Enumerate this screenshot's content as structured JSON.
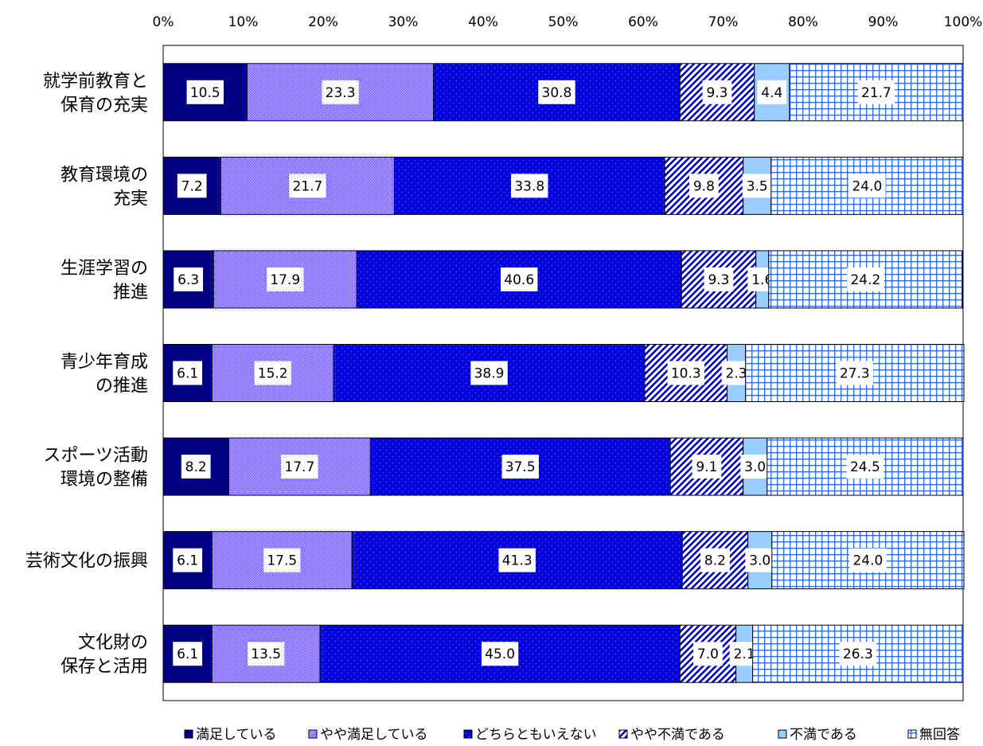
{
  "chart_data": {
    "type": "bar",
    "orientation": "horizontal",
    "stacked": true,
    "percent": true,
    "xlim": [
      0,
      100
    ],
    "x_ticks": [
      "0%",
      "10%",
      "20%",
      "30%",
      "40%",
      "50%",
      "60%",
      "70%",
      "80%",
      "90%",
      "100%"
    ],
    "categories": [
      [
        "就学前教育と",
        "保育の充実"
      ],
      [
        "教育環境の",
        "充実"
      ],
      [
        "生涯学習の",
        "推進"
      ],
      [
        "青少年育成",
        "の推進"
      ],
      [
        "スポーツ活動",
        "環境の整備"
      ],
      [
        "芸術文化の振興"
      ],
      [
        "文化財の",
        "保存と活用"
      ]
    ],
    "series": [
      {
        "name": "満足している",
        "color": "#000080",
        "pattern": "solid",
        "values": [
          10.5,
          7.2,
          6.3,
          6.1,
          8.2,
          6.1,
          6.1
        ]
      },
      {
        "name": "やや満足している",
        "color": "#3333ff",
        "pattern": "crosshatch",
        "values": [
          23.3,
          21.7,
          17.9,
          15.2,
          17.7,
          17.5,
          13.5
        ]
      },
      {
        "name": "どちらともいえない",
        "color": "#0000dd",
        "pattern": "dots",
        "values": [
          30.8,
          33.8,
          40.6,
          38.9,
          37.5,
          41.3,
          45.0
        ]
      },
      {
        "name": "やや不満である",
        "color": "#0000cc",
        "pattern": "diagonal",
        "values": [
          9.3,
          9.8,
          9.3,
          10.3,
          9.1,
          8.2,
          7.0
        ]
      },
      {
        "name": "不満である",
        "color": "#99ccff",
        "pattern": "solid",
        "values": [
          4.4,
          3.5,
          1.6,
          2.3,
          3.0,
          3.0,
          2.1
        ]
      },
      {
        "name": "無回答",
        "color": "#3366ff",
        "pattern": "grid",
        "values": [
          21.7,
          24.0,
          24.2,
          27.3,
          24.5,
          24.0,
          26.3
        ]
      }
    ],
    "data_labels": true,
    "grid": false,
    "legend_position": "bottom"
  }
}
